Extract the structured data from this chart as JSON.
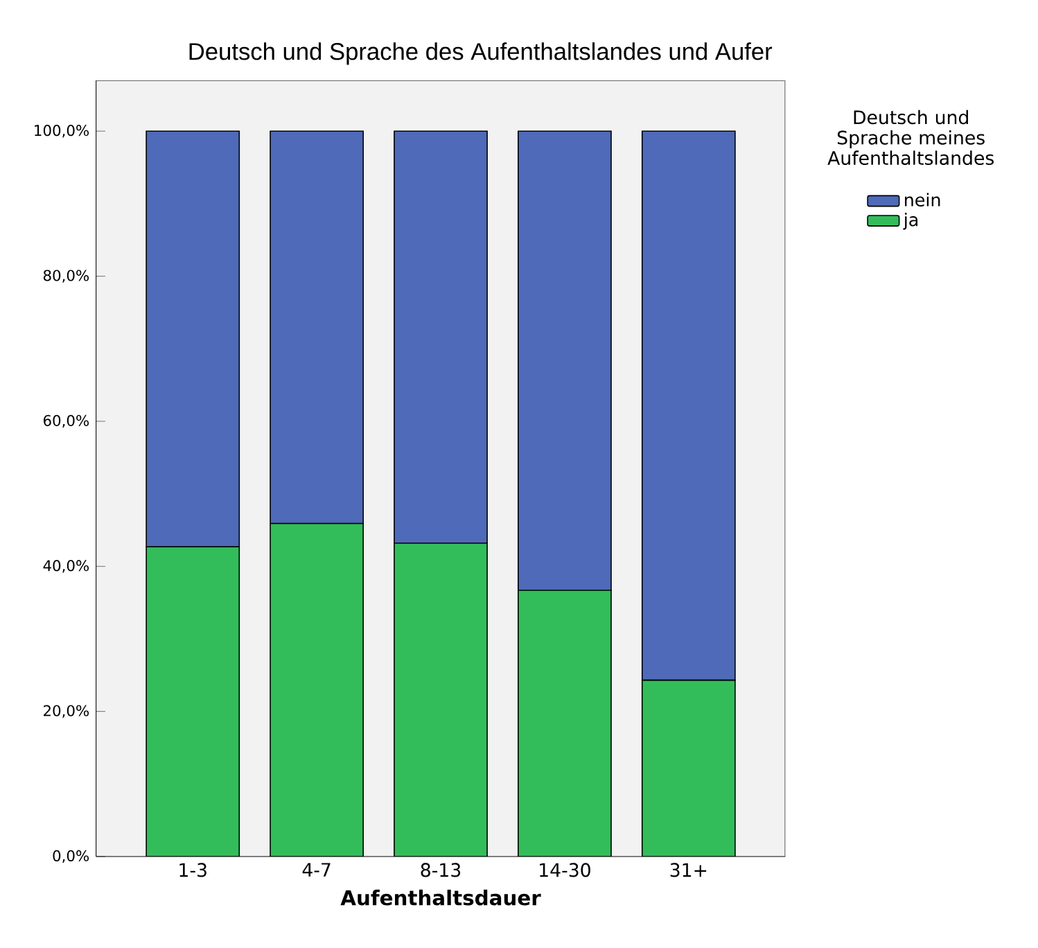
{
  "chart_data": {
    "type": "bar",
    "stacked": true,
    "title": "Deutsch und Sprache des Aufenthaltslandes und Aufer",
    "xlabel": "Aufenthaltsdauer",
    "legend_title": "Deutsch und Sprache meines Aufenthaltslandes",
    "legend": "right",
    "categories": [
      "1-3",
      "4-7",
      "8-13",
      "14-30",
      "31+"
    ],
    "series": [
      {
        "name": "ja",
        "color": "#33bd5a",
        "values": [
          42.7,
          45.9,
          43.2,
          36.7,
          24.3
        ]
      },
      {
        "name": "nein",
        "color": "#4e6ab8",
        "values": [
          57.3,
          54.1,
          56.8,
          63.3,
          75.7
        ]
      }
    ],
    "ylim": [
      0,
      107
    ],
    "yticks": [
      {
        "value": 0,
        "label": "0,0%"
      },
      {
        "value": 20,
        "label": "20,0%"
      },
      {
        "value": 40,
        "label": "40,0%"
      },
      {
        "value": 60,
        "label": "60,0%"
      },
      {
        "value": 80,
        "label": "80,0%"
      },
      {
        "value": 100,
        "label": "100,0%"
      }
    ]
  }
}
